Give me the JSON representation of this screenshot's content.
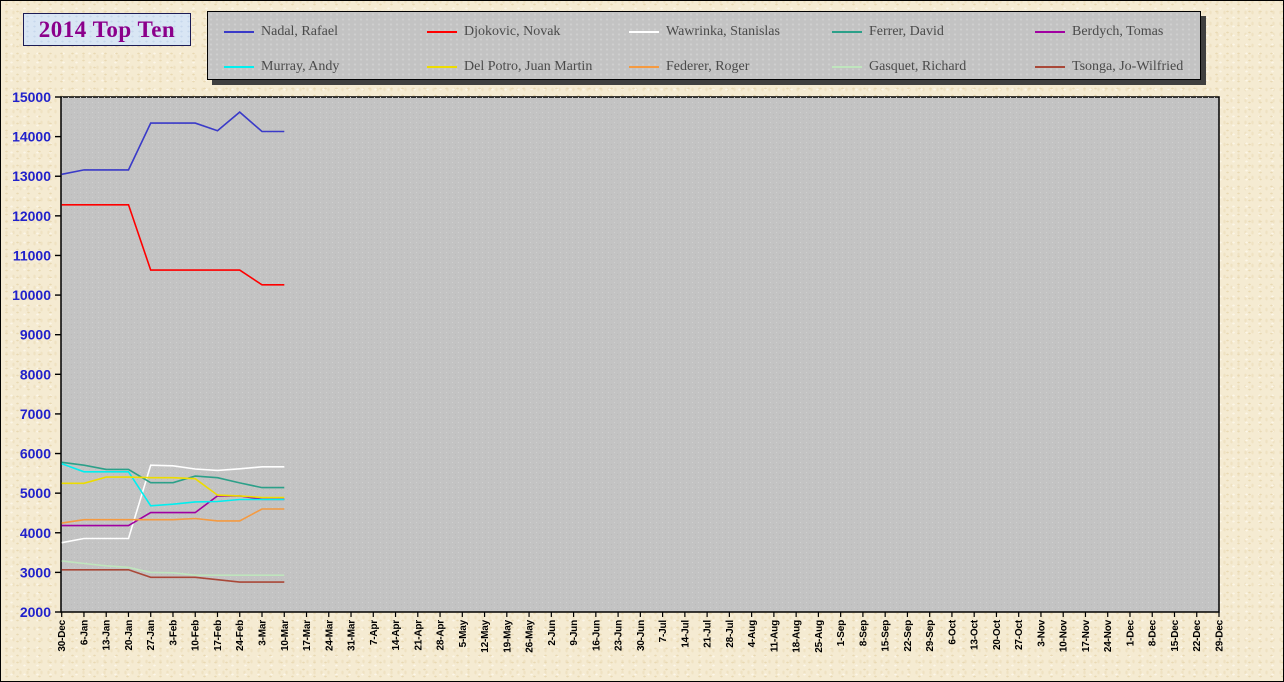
{
  "title": "2014 Top Ten",
  "colors": {
    "background": "#F5EBD2",
    "plot_background": "#C3C3C3",
    "title_text": "#8B008B",
    "title_box_background": "#D9E6F4",
    "y_axis_label": "#2121CB",
    "x_axis_label": "#000000",
    "legend_text": "#4A4A4A",
    "legend_background": "#C3C3C3"
  },
  "chart_data": {
    "type": "line",
    "title": "2014 Top Ten",
    "xlabel": "",
    "ylabel": "",
    "ylim": [
      2000,
      15000
    ],
    "y_tick_step": 1000,
    "grid": false,
    "legend_position": "top",
    "x_labels": [
      "30-Dec",
      "6-Jan",
      "13-Jan",
      "20-Jan",
      "27-Jan",
      "3-Feb",
      "10-Feb",
      "17-Feb",
      "24-Feb",
      "3-Mar",
      "10-Mar",
      "17-Mar",
      "24-Mar",
      "31-Mar",
      "7-Apr",
      "14-Apr",
      "21-Apr",
      "28-Apr",
      "5-May",
      "12-May",
      "19-May",
      "26-May",
      "2-Jun",
      "9-Jun",
      "16-Jun",
      "23-Jun",
      "30-Jun",
      "7-Jul",
      "14-Jul",
      "21-Jul",
      "28-Jul",
      "4-Aug",
      "11-Aug",
      "18-Aug",
      "25-Aug",
      "1-Sep",
      "8-Sep",
      "15-Sep",
      "22-Sep",
      "29-Sep",
      "6-Oct",
      "13-Oct",
      "20-Oct",
      "27-Oct",
      "3-Nov",
      "10-Nov",
      "17-Nov",
      "24-Nov",
      "1-Dec",
      "8-Dec",
      "15-Dec",
      "22-Dec",
      "29-Dec"
    ],
    "visible_points": 11,
    "series": [
      {
        "name": "Nadal, Rafael",
        "color": "#3A3AC8",
        "values": [
          13050,
          13160,
          13160,
          13160,
          14340,
          14340,
          14340,
          14150,
          14620,
          14130,
          14130
        ]
      },
      {
        "name": "Djokovic, Novak",
        "color": "#FF0000",
        "values": [
          12280,
          12280,
          12280,
          12280,
          10630,
          10630,
          10630,
          10630,
          10630,
          10260,
          10260
        ]
      },
      {
        "name": "Wawrinka, Stanislas",
        "color": "#FFFFFF",
        "values": [
          3750,
          3855,
          3855,
          3855,
          5705,
          5690,
          5610,
          5575,
          5615,
          5665,
          5665
        ]
      },
      {
        "name": "Ferrer, David",
        "color": "#2CA089",
        "values": [
          5780,
          5705,
          5600,
          5600,
          5265,
          5265,
          5430,
          5390,
          5260,
          5140,
          5140
        ]
      },
      {
        "name": "Berdych, Tomas",
        "color": "#A100A1",
        "values": [
          4180,
          4180,
          4180,
          4180,
          4510,
          4510,
          4510,
          4930,
          4930,
          4845,
          4845
        ]
      },
      {
        "name": "Murray, Andy",
        "color": "#00EFEF",
        "values": [
          5740,
          5540,
          5540,
          5540,
          4680,
          4720,
          4780,
          4790,
          4840,
          4840,
          4840
        ]
      },
      {
        "name": "Del Potro, Juan Martin",
        "color": "#EDDC00",
        "values": [
          5250,
          5250,
          5405,
          5405,
          5390,
          5390,
          5365,
          4950,
          4930,
          4890,
          4890
        ]
      },
      {
        "name": "Federer, Roger",
        "color": "#F59A40",
        "values": [
          4245,
          4330,
          4330,
          4330,
          4330,
          4330,
          4360,
          4300,
          4300,
          4600,
          4600
        ]
      },
      {
        "name": "Gasquet, Richard",
        "color": "#BFE5BD",
        "values": [
          3290,
          3225,
          3165,
          3125,
          3000,
          2990,
          2930,
          2930,
          2930,
          2930,
          2930
        ]
      },
      {
        "name": "Tsonga, Jo-Wilfried",
        "color": "#A94838",
        "values": [
          3065,
          3065,
          3065,
          3065,
          2875,
          2875,
          2875,
          2815,
          2755,
          2755,
          2755
        ]
      }
    ]
  }
}
